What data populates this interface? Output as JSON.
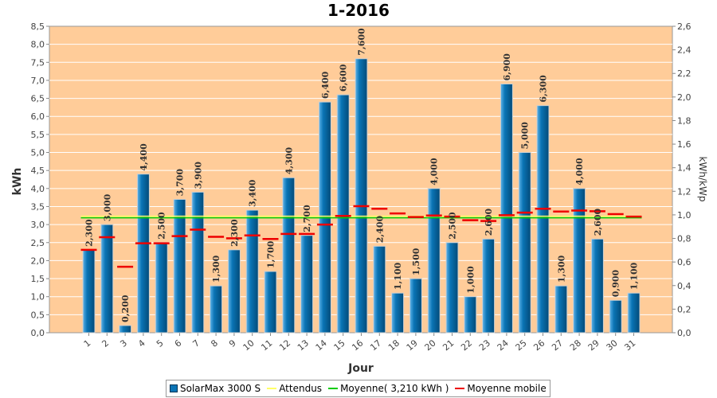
{
  "colors": {
    "plot_bg": "#ffcc99",
    "bar": "#0a74b5",
    "attendus": "#ffff66",
    "moyenne": "#00cc00",
    "moyenne_mobile": "#ee0000",
    "grid": "#ffffff"
  },
  "chart_data": {
    "type": "bar",
    "title": "1-2016",
    "xlabel": "Jour",
    "ylabel": "kWh",
    "y2label": "kWh/kWp",
    "ylim": [
      0,
      8.5
    ],
    "y2lim": [
      0,
      2.6
    ],
    "yticks": [
      "0,0",
      "0,5",
      "1,0",
      "1,5",
      "2,0",
      "2,5",
      "3,0",
      "3,5",
      "4,0",
      "4,5",
      "5,0",
      "5,5",
      "6,0",
      "6,5",
      "7,0",
      "7,5",
      "8,0",
      "8,5"
    ],
    "y2ticks": [
      "0,0",
      "0,2",
      "0,4",
      "0,6",
      "0,8",
      "1,0",
      "1,2",
      "1,4",
      "1,6",
      "1,8",
      "2,0",
      "2,2",
      "2,4",
      "2,6"
    ],
    "categories": [
      "1",
      "2",
      "3",
      "4",
      "5",
      "6",
      "7",
      "8",
      "9",
      "10",
      "11",
      "12",
      "13",
      "14",
      "15",
      "16",
      "17",
      "18",
      "19",
      "20",
      "21",
      "22",
      "23",
      "24",
      "25",
      "26",
      "27",
      "28",
      "29",
      "30",
      "31"
    ],
    "series": [
      {
        "name": "SolarMax 3000 S",
        "values": [
          2.3,
          3.0,
          0.2,
          4.4,
          2.5,
          3.7,
          3.9,
          1.3,
          2.3,
          3.4,
          1.7,
          4.3,
          2.7,
          6.4,
          6.6,
          7.6,
          2.4,
          1.1,
          1.5,
          4.0,
          2.5,
          1.0,
          2.6,
          6.9,
          5.0,
          6.3,
          1.3,
          4.0,
          2.6,
          0.9,
          1.1
        ],
        "labels": [
          "2,300",
          "3,000",
          "0,200",
          "4,400",
          "2,500",
          "3,700",
          "3,900",
          "1,300",
          "2,300",
          "3,400",
          "1,700",
          "4,300",
          "2,700",
          "6,400",
          "6,600",
          "7,600",
          "2,400",
          "1,100",
          "1,500",
          "4,000",
          "2,500",
          "1,000",
          "2,600",
          "6,900",
          "5,000",
          "6,300",
          "1,300",
          "4,000",
          "2,600",
          "0,900",
          "1,100"
        ]
      },
      {
        "name": "Attendus",
        "value": 3.21
      },
      {
        "name": "Moyenne( 3,210 kWh )",
        "value": 3.21
      },
      {
        "name": "Moyenne mobile",
        "values": [
          2.3,
          2.65,
          1.83,
          2.48,
          2.48,
          2.68,
          2.86,
          2.66,
          2.62,
          2.7,
          2.6,
          2.74,
          2.74,
          3.0,
          3.24,
          3.51,
          3.44,
          3.31,
          3.21,
          3.25,
          3.22,
          3.12,
          3.1,
          3.26,
          3.33,
          3.44,
          3.36,
          3.39,
          3.37,
          3.29,
          3.22
        ]
      }
    ],
    "legend": {
      "position": "bottom",
      "items": [
        "SolarMax 3000 S",
        "Attendus",
        "Moyenne( 3,210 kWh )",
        "Moyenne mobile"
      ]
    }
  }
}
